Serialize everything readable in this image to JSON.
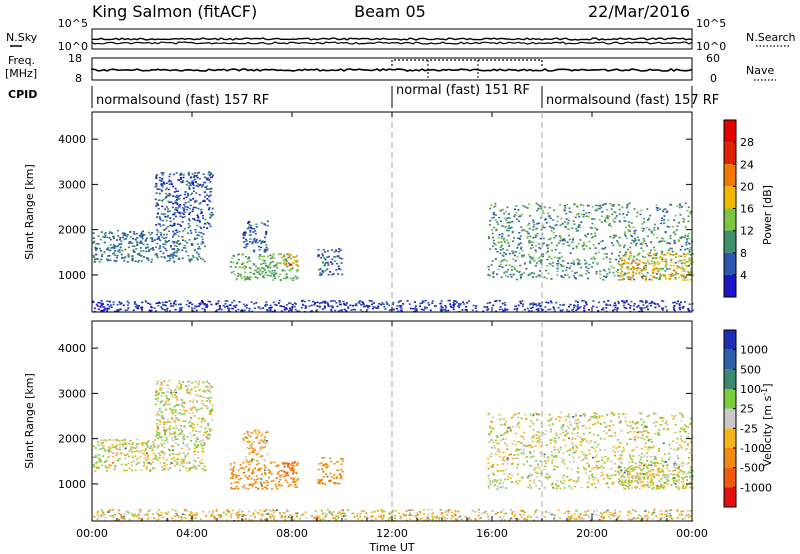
{
  "header": {
    "title": "King Salmon (fitACF)",
    "beam": "Beam 05",
    "date": "22/Mar/2016"
  },
  "params": {
    "nsky_label": "N.Sky",
    "nsearch_label": "N.Search",
    "freq_label_line1": "Freq.",
    "freq_label_line2": "[MHz]",
    "nave_label": "Nave",
    "cpid_label": "CPID",
    "noise_ticks_left": [
      "10^5",
      "10^0"
    ],
    "noise_ticks_right": [
      "10^5",
      "10^0"
    ],
    "freq_ticks": [
      "18",
      "8"
    ],
    "nave_ticks": [
      "60",
      "0"
    ]
  },
  "cpid_segments": [
    {
      "label": "normalsound (fast) 157 RF",
      "start_hour": 0,
      "end_hour": 12
    },
    {
      "label": "normal (fast) 151 RF",
      "start_hour": 12,
      "end_hour": 18
    },
    {
      "label": "normalsound (fast) 157 RF",
      "start_hour": 18,
      "end_hour": 24
    }
  ],
  "xaxis": {
    "label": "Time UT",
    "ticks": [
      "00:00",
      "04:00",
      "08:00",
      "12:00",
      "16:00",
      "20:00",
      "00:00"
    ],
    "range_hours": [
      0,
      24
    ]
  },
  "yaxis": {
    "label": "Slant Range [km]",
    "ticks": [
      1000,
      2000,
      3000,
      4000
    ],
    "range_km": [
      180,
      4600
    ]
  },
  "power_scale": {
    "label": "Power [dB]",
    "ticks": [
      "4",
      "8",
      "12",
      "16",
      "20",
      "24",
      "28"
    ],
    "colors": [
      "#1b14c8",
      "#2a56b0",
      "#3f8f6a",
      "#7cc443",
      "#f0b900",
      "#f07a00",
      "#e32000",
      "#e30000"
    ]
  },
  "velocity_scale": {
    "label": "Velocity [m s",
    "label_sup": "-1",
    "label_end": "]",
    "ticks": [
      "1000",
      "500",
      "100",
      "25",
      "-25",
      "-100",
      "-500",
      "-1000"
    ],
    "colors": [
      "#1f2fb5",
      "#2f5fa6",
      "#3c8a6e",
      "#7ccd3c",
      "#c8c8c8",
      "#f4b51a",
      "#f08a10",
      "#f05a10",
      "#e31010"
    ]
  },
  "chart_data": {
    "type": "heatmap",
    "panels": [
      {
        "name": "Power",
        "quantity": "Power [dB]"
      },
      {
        "name": "Velocity",
        "quantity": "Velocity [m s^-1]"
      }
    ],
    "x_range_hours": [
      0,
      24
    ],
    "y_range_km": [
      180,
      4600
    ],
    "echo_regions": [
      {
        "t": [
          0.0,
          4.5
        ],
        "r": [
          1300,
          2000
        ],
        "power": 8,
        "velocity": 0
      },
      {
        "t": [
          2.5,
          4.8
        ],
        "r": [
          2000,
          3300
        ],
        "power": 6,
        "velocity": 0
      },
      {
        "t": [
          5.5,
          8.2
        ],
        "r": [
          900,
          1500
        ],
        "power": 12,
        "velocity": -300
      },
      {
        "t": [
          7.6,
          8.2
        ],
        "r": [
          1200,
          1500
        ],
        "power": 22,
        "velocity": -600
      },
      {
        "t": [
          6.0,
          7.0
        ],
        "r": [
          1500,
          2200
        ],
        "power": 6,
        "velocity": -100
      },
      {
        "t": [
          9.0,
          10.0
        ],
        "r": [
          1000,
          1600
        ],
        "power": 6,
        "velocity": -400
      },
      {
        "t": [
          15.8,
          24.0
        ],
        "r": [
          900,
          2600
        ],
        "power": 10,
        "velocity": 0
      },
      {
        "t": [
          21.0,
          24.0
        ],
        "r": [
          900,
          1500
        ],
        "power": 18,
        "velocity": 0
      },
      {
        "t": [
          0.0,
          24.0
        ],
        "r": [
          200,
          450
        ],
        "power": 4,
        "velocity": -50
      }
    ]
  }
}
